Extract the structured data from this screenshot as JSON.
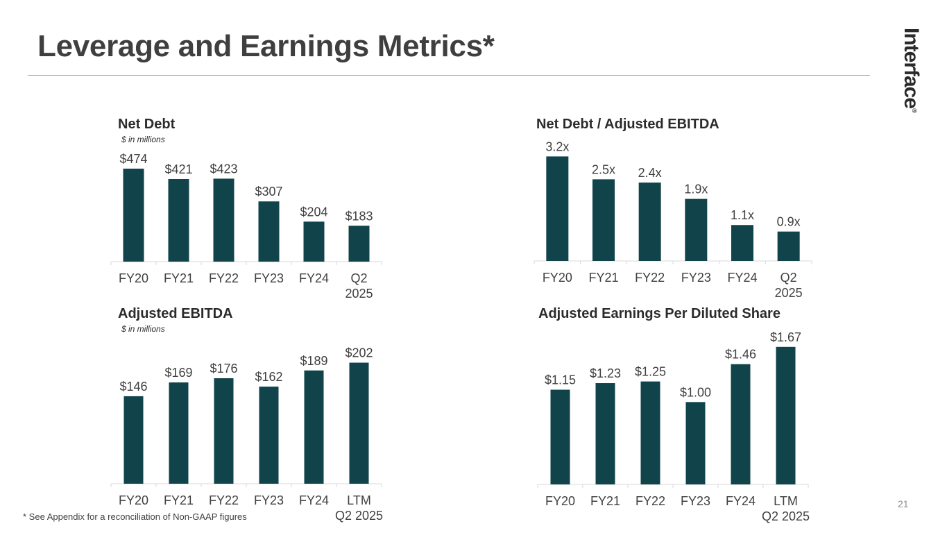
{
  "header": {
    "title": "Leverage and Earnings Metrics*",
    "logo_text": "Interface",
    "logo_mark": "®"
  },
  "colors": {
    "bar": "#11444a",
    "axis": "#d9d9d9",
    "label": "#404040"
  },
  "charts": {
    "net_debt": {
      "title": "Net Debt",
      "subtitle": "$ in millions"
    },
    "leverage": {
      "title": "Net Debt / Adjusted EBITDA",
      "subtitle": ""
    },
    "ebitda": {
      "title": "Adjusted EBITDA",
      "subtitle": "$ in millions"
    },
    "eps": {
      "title": "Adjusted Earnings Per Diluted Share",
      "subtitle": ""
    }
  },
  "chart_data": [
    {
      "id": "net_debt",
      "type": "bar",
      "title": "Net Debt",
      "subtitle": "$ in millions",
      "categories": [
        [
          "FY20"
        ],
        [
          "FY21"
        ],
        [
          "FY22"
        ],
        [
          "FY23"
        ],
        [
          "FY24"
        ],
        [
          "Q2",
          "2025"
        ]
      ],
      "values": [
        474,
        421,
        423,
        307,
        204,
        183
      ],
      "labels": [
        "$474",
        "$421",
        "$423",
        "$307",
        "$204",
        "$183"
      ],
      "ylim": [
        0,
        520
      ]
    },
    {
      "id": "leverage",
      "type": "bar",
      "title": "Net Debt / Adjusted EBITDA",
      "categories": [
        [
          "FY20"
        ],
        [
          "FY21"
        ],
        [
          "FY22"
        ],
        [
          "FY23"
        ],
        [
          "FY24"
        ],
        [
          "Q2",
          "2025"
        ]
      ],
      "values": [
        3.2,
        2.5,
        2.4,
        1.9,
        1.1,
        0.9
      ],
      "labels": [
        "3.2x",
        "2.5x",
        "2.4x",
        "1.9x",
        "1.1x",
        "0.9x"
      ],
      "ylim": [
        0,
        3.4
      ]
    },
    {
      "id": "ebitda",
      "type": "bar",
      "title": "Adjusted EBITDA",
      "subtitle": "$ in millions",
      "categories": [
        [
          "FY20"
        ],
        [
          "FY21"
        ],
        [
          "FY22"
        ],
        [
          "FY23"
        ],
        [
          "FY24"
        ],
        [
          "LTM",
          "Q2 2025"
        ]
      ],
      "values": [
        146,
        169,
        176,
        162,
        189,
        202
      ],
      "labels": [
        "$146",
        "$169",
        "$176",
        "$162",
        "$189",
        "$202"
      ],
      "ylim": [
        0,
        220
      ]
    },
    {
      "id": "eps",
      "type": "bar",
      "title": "Adjusted Earnings Per Diluted Share",
      "categories": [
        [
          "FY20"
        ],
        [
          "FY21"
        ],
        [
          "FY22"
        ],
        [
          "FY23"
        ],
        [
          "FY24"
        ],
        [
          "LTM",
          "Q2 2025"
        ]
      ],
      "values": [
        1.15,
        1.23,
        1.25,
        1.0,
        1.46,
        1.67
      ],
      "labels": [
        "$1.15",
        "$1.23",
        "$1.25",
        "$1.00",
        "$1.46",
        "$1.67"
      ],
      "ylim": [
        0,
        1.82
      ]
    }
  ],
  "footer": {
    "footnote": "* See Appendix for a reconciliation of Non-GAAP figures",
    "page_number": "21"
  }
}
